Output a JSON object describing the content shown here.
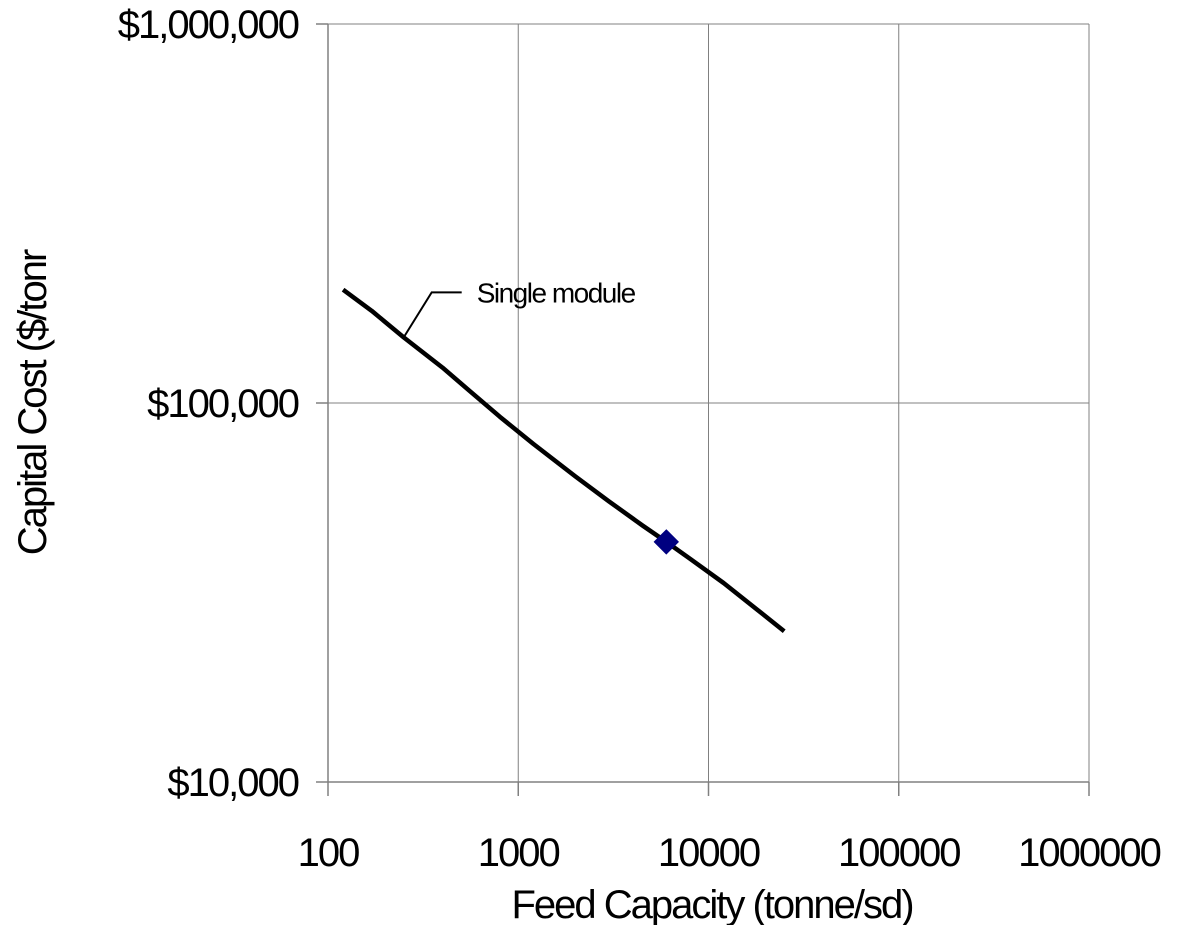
{
  "chart_data": {
    "type": "line",
    "title": "",
    "xlabel": "Feed Capacity (tonne/sd)",
    "ylabel": "Capital Cost ($/tonr",
    "x_scale": "log",
    "y_scale": "log",
    "xlim": [
      100,
      1000000
    ],
    "ylim": [
      10000,
      1000000
    ],
    "grid": true,
    "x_tick_labels": [
      "100",
      "1000",
      "10000",
      "100000",
      "1000000"
    ],
    "x_tick_values": [
      100,
      1000,
      10000,
      100000,
      1000000
    ],
    "y_tick_labels": [
      "$10,000",
      "$100,000",
      "$1,000,000"
    ],
    "y_tick_values": [
      10000,
      100000,
      1000000
    ],
    "series": [
      {
        "name": "Single module",
        "color": "#000000",
        "x": [
          120,
          170,
          250,
          400,
          550,
          800,
          1200,
          2000,
          3000,
          4500,
          6000,
          8000,
          12000,
          18000,
          25000
        ],
        "y": [
          199000,
          175000,
          149000,
          124000,
          108000,
          92000,
          78000,
          64000,
          55000,
          47500,
          43000,
          38800,
          33500,
          28500,
          25000
        ]
      }
    ],
    "markers": [
      {
        "x": 6000,
        "y": 43000,
        "shape": "diamond",
        "color": "#000080"
      }
    ],
    "annotations": [
      {
        "text": "Single module",
        "x": 250,
        "y": 149000
      }
    ]
  }
}
